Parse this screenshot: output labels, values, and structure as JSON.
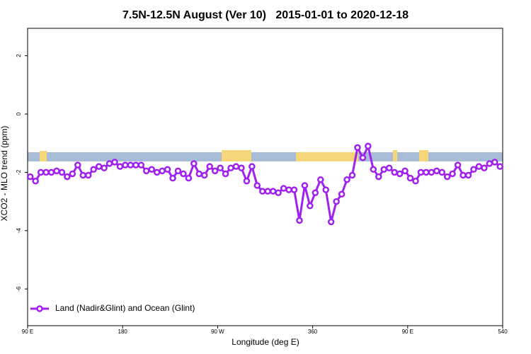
{
  "chart_data": {
    "type": "line",
    "title": "7.5N-12.5N August (Ver 10)   2015-01-01 to 2020-12-18",
    "xlabel": "Longitude (deg E)",
    "ylabel": "XCO2 - MLO trend (ppm)",
    "xlim": [
      90,
      540
    ],
    "ylim": [
      -7.26,
      2.94
    ],
    "xticks": [
      {
        "value": 90,
        "label": "90 E"
      },
      180,
      {
        "value": 270,
        "label": "90 W"
      },
      360,
      {
        "value": 450,
        "label": "90 E"
      },
      540
    ],
    "yticks": [
      2,
      0,
      -2,
      -4,
      -6
    ],
    "legend": "bottomleft",
    "grid": false,
    "x": [
      92.5,
      97.5,
      102.5,
      107.5,
      112.5,
      117.5,
      122.5,
      127.5,
      132.5,
      137.5,
      142.5,
      147.5,
      152.5,
      157.5,
      162.5,
      167.5,
      172.5,
      177.5,
      182.5,
      187.5,
      192.5,
      197.5,
      202.5,
      207.5,
      212.5,
      217.5,
      222.5,
      227.5,
      232.5,
      237.5,
      242.5,
      247.5,
      252.5,
      257.5,
      262.5,
      267.5,
      272.5,
      277.5,
      282.5,
      287.5,
      292.5,
      297.5,
      302.5,
      307.5,
      312.5,
      317.5,
      322.5,
      327.5,
      332.5,
      337.5,
      342.5,
      347.5,
      352.5,
      357.5,
      362.5,
      367.5,
      372.5,
      377.5,
      382.5,
      387.5,
      392.5,
      397.5,
      402.5,
      407.5,
      412.5,
      417.5,
      422.5,
      427.5,
      432.5,
      437.5,
      442.5,
      447.5,
      452.5,
      457.5,
      462.5,
      467.5,
      472.5,
      477.5,
      482.5,
      487.5,
      492.5,
      497.5,
      502.5,
      507.5,
      512.5,
      517.5,
      522.5,
      527.5,
      532.5,
      537.5
    ],
    "series": [
      {
        "name": "Land (Nadir&Glint) and Ocean (Glint)",
        "color": "#a020f0",
        "values": [
          -2.15,
          -2.3,
          -2.0,
          -2.0,
          -2.0,
          -1.95,
          -2.0,
          -2.15,
          -2.05,
          -1.75,
          -2.1,
          -2.1,
          -1.9,
          -1.8,
          -1.85,
          -1.7,
          -1.65,
          -1.8,
          -1.75,
          -1.75,
          -1.75,
          -1.75,
          -1.95,
          -1.9,
          -2.0,
          -1.95,
          -1.9,
          -2.2,
          -1.95,
          -2.05,
          -2.2,
          -1.7,
          -2.05,
          -2.1,
          -1.8,
          -1.95,
          -1.85,
          -2.05,
          -1.85,
          -1.8,
          -1.85,
          -2.3,
          -1.8,
          -2.45,
          -2.65,
          -2.65,
          -2.65,
          -2.7,
          -2.55,
          -2.6,
          -2.6,
          -3.65,
          -2.45,
          -3.15,
          -2.7,
          -2.25,
          -2.6,
          -3.7,
          -3.0,
          -2.75,
          -2.25,
          -2.1,
          -1.15,
          -1.5,
          -1.1,
          -1.9,
          -2.15,
          -1.9,
          -1.85,
          -2.0,
          -2.05,
          -1.95,
          -2.2,
          -2.3,
          -2.0,
          -2.0,
          -2.0,
          -1.95,
          -2.0,
          -2.15,
          -2.05,
          -1.75,
          -2.1,
          -2.1,
          -1.9,
          -1.8,
          -1.85,
          -1.7,
          -1.65,
          -1.8
        ]
      }
    ]
  }
}
